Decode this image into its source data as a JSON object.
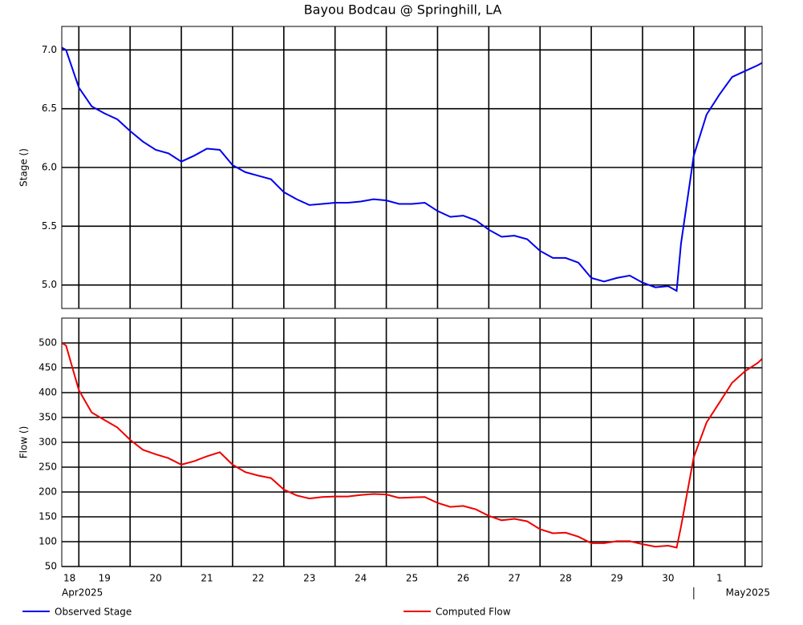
{
  "chart_data": [
    {
      "type": "line",
      "title": "Bayou Bodcau @ Springhill, LA",
      "y_label": "Stage ()",
      "series": [
        {
          "name": "Observed Stage",
          "color": "#0000ee",
          "values": [
            7.02,
            7.0,
            6.68,
            6.52,
            6.46,
            6.41,
            6.31,
            6.22,
            6.15,
            6.12,
            6.05,
            6.1,
            6.16,
            6.15,
            6.02,
            5.96,
            5.93,
            5.9,
            5.79,
            5.73,
            5.68,
            5.69,
            5.7,
            5.7,
            5.71,
            5.73,
            5.72,
            5.69,
            5.69,
            5.7,
            5.63,
            5.58,
            5.59,
            5.55,
            5.47,
            5.41,
            5.42,
            5.39,
            5.29,
            5.23,
            5.23,
            5.19,
            5.06,
            5.03,
            5.06,
            5.08,
            5.02,
            4.98,
            4.99,
            4.95,
            5.35,
            6.1,
            6.45,
            6.62,
            6.77,
            6.82,
            6.87,
            6.89
          ]
        }
      ],
      "x": [
        "2025-04-18T16:00",
        "2025-04-18T18:00",
        "2025-04-19T00:00",
        "2025-04-19T06:00",
        "2025-04-19T12:00",
        "2025-04-19T18:00",
        "2025-04-20T00:00",
        "2025-04-20T06:00",
        "2025-04-20T12:00",
        "2025-04-20T18:00",
        "2025-04-21T00:00",
        "2025-04-21T06:00",
        "2025-04-21T12:00",
        "2025-04-21T18:00",
        "2025-04-22T00:00",
        "2025-04-22T06:00",
        "2025-04-22T12:00",
        "2025-04-22T18:00",
        "2025-04-23T00:00",
        "2025-04-23T06:00",
        "2025-04-23T12:00",
        "2025-04-23T18:00",
        "2025-04-24T00:00",
        "2025-04-24T06:00",
        "2025-04-24T12:00",
        "2025-04-24T18:00",
        "2025-04-25T00:00",
        "2025-04-25T06:00",
        "2025-04-25T12:00",
        "2025-04-25T18:00",
        "2025-04-26T00:00",
        "2025-04-26T06:00",
        "2025-04-26T12:00",
        "2025-04-26T18:00",
        "2025-04-27T00:00",
        "2025-04-27T06:00",
        "2025-04-27T12:00",
        "2025-04-27T18:00",
        "2025-04-28T00:00",
        "2025-04-28T06:00",
        "2025-04-28T12:00",
        "2025-04-28T18:00",
        "2025-04-29T00:00",
        "2025-04-29T06:00",
        "2025-04-29T12:00",
        "2025-04-29T18:00",
        "2025-04-30T00:00",
        "2025-04-30T06:00",
        "2025-04-30T12:00",
        "2025-04-30T16:00",
        "2025-04-30T18:00",
        "2025-05-01T00:00",
        "2025-05-01T06:00",
        "2025-05-01T12:00",
        "2025-05-01T18:00",
        "2025-05-02T00:00",
        "2025-05-02T06:00",
        "2025-05-02T08:00"
      ],
      "xlim": [
        "2025-04-18T16:00",
        "2025-05-02T08:00"
      ],
      "xticks": [
        {
          "value": "2025-04-18T00:00",
          "label": "18"
        },
        {
          "value": "2025-04-19T00:00",
          "label": "19"
        },
        {
          "value": "2025-04-20T00:00",
          "label": "20"
        },
        {
          "value": "2025-04-21T00:00",
          "label": "21"
        },
        {
          "value": "2025-04-22T00:00",
          "label": "22"
        },
        {
          "value": "2025-04-23T00:00",
          "label": "23"
        },
        {
          "value": "2025-04-24T00:00",
          "label": "24"
        },
        {
          "value": "2025-04-25T00:00",
          "label": "25"
        },
        {
          "value": "2025-04-26T00:00",
          "label": "26"
        },
        {
          "value": "2025-04-27T00:00",
          "label": "27"
        },
        {
          "value": "2025-04-28T00:00",
          "label": "28"
        },
        {
          "value": "2025-04-29T00:00",
          "label": "29"
        },
        {
          "value": "2025-04-30T00:00",
          "label": "30"
        },
        {
          "value": "2025-05-01T00:00",
          "label": "1"
        }
      ],
      "ylim": [
        4.8,
        7.2
      ],
      "yticks": [
        {
          "value": 5,
          "label": "5.0"
        },
        5.5,
        {
          "value": 6,
          "label": "6.0"
        },
        6.5,
        {
          "value": 7,
          "label": "7.0"
        }
      ],
      "grid": true
    },
    {
      "type": "line",
      "y_label": "Flow ()",
      "series": [
        {
          "name": "Computed Flow",
          "color": "#ee0000",
          "values": [
            500,
            495,
            405,
            360,
            345,
            330,
            305,
            285,
            276,
            268,
            255,
            262,
            272,
            280,
            255,
            240,
            233,
            228,
            205,
            193,
            187,
            190,
            191,
            191,
            194,
            196,
            195,
            188,
            189,
            190,
            178,
            170,
            172,
            165,
            152,
            143,
            146,
            141,
            125,
            117,
            118,
            110,
            97,
            97,
            101,
            101,
            95,
            90,
            92,
            88,
            130,
            270,
            340,
            380,
            420,
            443,
            460,
            468
          ]
        }
      ],
      "x": [
        "2025-04-18T16:00",
        "2025-04-18T18:00",
        "2025-04-19T00:00",
        "2025-04-19T06:00",
        "2025-04-19T12:00",
        "2025-04-19T18:00",
        "2025-04-20T00:00",
        "2025-04-20T06:00",
        "2025-04-20T12:00",
        "2025-04-20T18:00",
        "2025-04-21T00:00",
        "2025-04-21T06:00",
        "2025-04-21T12:00",
        "2025-04-21T18:00",
        "2025-04-22T00:00",
        "2025-04-22T06:00",
        "2025-04-22T12:00",
        "2025-04-22T18:00",
        "2025-04-23T00:00",
        "2025-04-23T06:00",
        "2025-04-23T12:00",
        "2025-04-23T18:00",
        "2025-04-24T00:00",
        "2025-04-24T06:00",
        "2025-04-24T12:00",
        "2025-04-24T18:00",
        "2025-04-25T00:00",
        "2025-04-25T06:00",
        "2025-04-25T12:00",
        "2025-04-25T18:00",
        "2025-04-26T00:00",
        "2025-04-26T06:00",
        "2025-04-26T12:00",
        "2025-04-26T18:00",
        "2025-04-27T00:00",
        "2025-04-27T06:00",
        "2025-04-27T12:00",
        "2025-04-27T18:00",
        "2025-04-28T00:00",
        "2025-04-28T06:00",
        "2025-04-28T12:00",
        "2025-04-28T18:00",
        "2025-04-29T00:00",
        "2025-04-29T06:00",
        "2025-04-29T12:00",
        "2025-04-29T18:00",
        "2025-04-30T00:00",
        "2025-04-30T06:00",
        "2025-04-30T12:00",
        "2025-04-30T16:00",
        "2025-04-30T18:00",
        "2025-05-01T00:00",
        "2025-05-01T06:00",
        "2025-05-01T12:00",
        "2025-05-01T18:00",
        "2025-05-02T00:00",
        "2025-05-02T06:00",
        "2025-05-02T08:00"
      ],
      "xlim": [
        "2025-04-18T16:00",
        "2025-05-02T08:00"
      ],
      "xticks": [
        {
          "value": "2025-04-18T00:00",
          "label": "18"
        },
        {
          "value": "2025-04-19T00:00",
          "label": "19"
        },
        {
          "value": "2025-04-20T00:00",
          "label": "20"
        },
        {
          "value": "2025-04-21T00:00",
          "label": "21"
        },
        {
          "value": "2025-04-22T00:00",
          "label": "22"
        },
        {
          "value": "2025-04-23T00:00",
          "label": "23"
        },
        {
          "value": "2025-04-24T00:00",
          "label": "24"
        },
        {
          "value": "2025-04-25T00:00",
          "label": "25"
        },
        {
          "value": "2025-04-26T00:00",
          "label": "26"
        },
        {
          "value": "2025-04-27T00:00",
          "label": "27"
        },
        {
          "value": "2025-04-28T00:00",
          "label": "28"
        },
        {
          "value": "2025-04-29T00:00",
          "label": "29"
        },
        {
          "value": "2025-04-30T00:00",
          "label": "30"
        },
        {
          "value": "2025-05-01T00:00",
          "label": "1"
        }
      ],
      "months": [
        {
          "value": "2025-04-18T16:00",
          "label": "Apr2025"
        },
        {
          "value": "2025-05-01T00:00",
          "label": "May2025"
        }
      ],
      "ylim": [
        50,
        550
      ],
      "yticks": [
        50,
        100,
        150,
        200,
        250,
        300,
        350,
        400,
        450,
        500
      ],
      "grid": true
    }
  ]
}
